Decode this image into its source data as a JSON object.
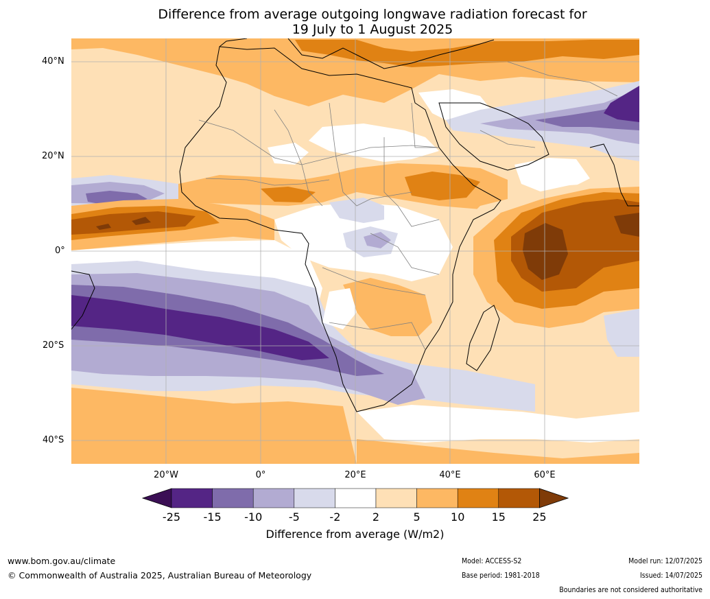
{
  "title": {
    "line1": "Difference from average outgoing longwave radiation forecast for",
    "line2": "19 July to 1 August 2025"
  },
  "axes": {
    "lat_labels": [
      "40°N",
      "20°N",
      "0°",
      "20°S",
      "40°S"
    ],
    "lon_labels": [
      "20°W",
      "0°",
      "20°E",
      "40°E",
      "60°E"
    ]
  },
  "colorbar": {
    "ticks": [
      "-25",
      "-15",
      "-10",
      "-5",
      "-2",
      "2",
      "5",
      "10",
      "15",
      "25"
    ],
    "colors": [
      "#3b0f55",
      "#542585",
      "#7f6cab",
      "#b2abd2",
      "#d8daeb",
      "#ffffff",
      "#fee0b6",
      "#fdb863",
      "#e08214",
      "#b35806",
      "#7f3b08"
    ],
    "label": "Difference from average (W/m2)"
  },
  "footer": {
    "website": "www.bom.gov.au/climate",
    "copyright": "© Commonwealth of Australia 2025, Australian Bureau of Meteorology",
    "model": "Model: ACCESS-S2",
    "base_period": "Base period: 1981-2018",
    "model_run": "Model run: 12/07/2025",
    "issued": "Issued: 14/07/2025",
    "disclaimer": "Boundaries are not considered authoritative"
  }
}
